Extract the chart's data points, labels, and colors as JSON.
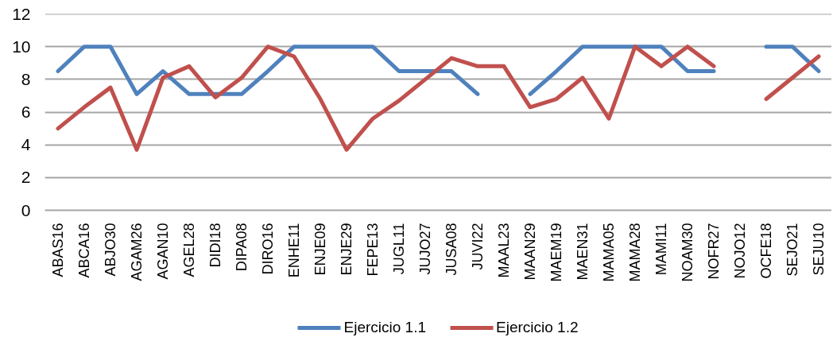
{
  "chart_data": {
    "type": "line",
    "categories": [
      "ABAS16",
      "ABCA16",
      "ABJO30",
      "AGAM26",
      "AGAN10",
      "AGEL28",
      "DIDI18",
      "DIPA08",
      "DIRO16",
      "ENHE11",
      "ENJE09",
      "ENJE29",
      "FEPE13",
      "JUGL11",
      "JUJO27",
      "JUSA08",
      "JUVI22",
      "MAAL23",
      "MAAN29",
      "MAEM19",
      "MAEN31",
      "MAMA05",
      "MAMA28",
      "MAMI11",
      "NOAM30",
      "NOFR27",
      "NOJO12",
      "OCFE18",
      "SEJO21",
      "SEJU10"
    ],
    "series": [
      {
        "name": "Ejercicio 1.1",
        "color": "#4f81bd",
        "values": [
          8.5,
          10,
          10,
          7.1,
          8.5,
          7.1,
          7.1,
          7.1,
          8.5,
          10,
          10,
          10,
          10,
          8.5,
          8.5,
          8.5,
          7.1,
          null,
          7.1,
          8.5,
          10,
          10,
          10,
          10,
          8.5,
          8.5,
          null,
          10,
          10,
          8.5
        ]
      },
      {
        "name": "Ejercicio 1.2",
        "color": "#c0504d",
        "values": [
          5.0,
          6.3,
          7.5,
          3.7,
          8.1,
          8.8,
          6.9,
          8.1,
          10,
          9.4,
          6.8,
          3.7,
          5.6,
          6.7,
          8.0,
          9.3,
          8.8,
          8.8,
          6.3,
          6.8,
          8.1,
          5.6,
          10,
          8.8,
          10,
          8.8,
          null,
          6.8,
          8.1,
          9.4
        ]
      }
    ],
    "ylim": [
      0,
      12
    ],
    "yticks": [
      0,
      2,
      4,
      6,
      8,
      10,
      12
    ],
    "grid": "y",
    "legend": "bottom"
  }
}
